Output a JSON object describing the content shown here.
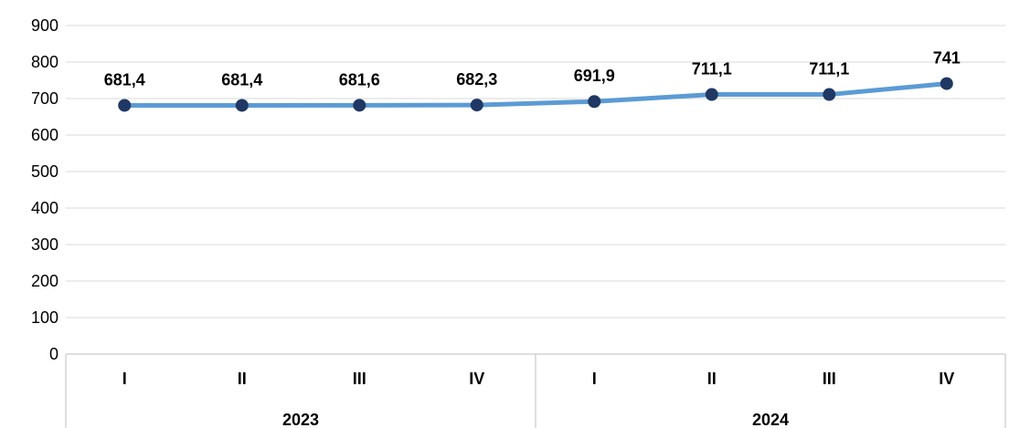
{
  "chart_data": {
    "type": "line",
    "title": "",
    "xlabel": "",
    "ylabel": "",
    "ylim": [
      0,
      900
    ],
    "y_ticks": [
      0,
      100,
      200,
      300,
      400,
      500,
      600,
      700,
      800,
      900
    ],
    "grid": true,
    "categories": [
      "I",
      "II",
      "III",
      "IV",
      "I",
      "II",
      "III",
      "IV"
    ],
    "groups": [
      {
        "label": "2023",
        "span": 4
      },
      {
        "label": "2024",
        "span": 4
      }
    ],
    "series": [
      {
        "values": [
          681.4,
          681.4,
          681.6,
          682.3,
          691.9,
          711.1,
          711.1,
          741
        ],
        "data_labels": [
          "681,4",
          "681,4",
          "681,6",
          "682,3",
          "691,9",
          "711,1",
          "711,1",
          "741"
        ]
      }
    ],
    "colors": {
      "line": "#5b9bd5",
      "marker": "#1f3864",
      "grid": "#d9d9d9",
      "axis": "#bfbfbf"
    }
  }
}
